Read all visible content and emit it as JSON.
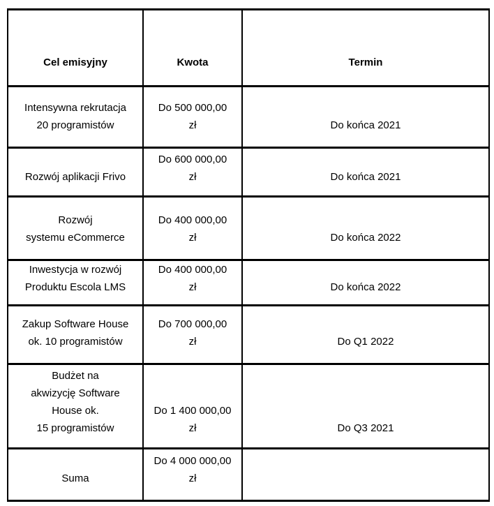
{
  "table": {
    "headers": [
      "Cel emisyjny",
      "Kwota",
      "Termin"
    ],
    "rows": [
      {
        "goal": "Intensywna rekrutacja\n20 programistów",
        "amount": "Do 500 000,00\nzł",
        "deadline": "Do końca 2021"
      },
      {
        "goal": "Rozwój aplikacji Frivo",
        "amount": "Do 600 000,00\nzł",
        "deadline": "Do końca 2021"
      },
      {
        "goal": "Rozwój\nsystemu eCommerce",
        "amount": "Do 400 000,00\nzł",
        "deadline": "Do końca 2022"
      },
      {
        "goal": "Inwestycja w rozwój\nProduktu Escola LMS",
        "amount": "Do 400 000,00\nzł",
        "deadline": "Do końca 2022"
      },
      {
        "goal": "Zakup Software House\nok. 10 programistów",
        "amount": "Do 700 000,00\nzł",
        "deadline": "Do Q1 2022"
      },
      {
        "goal": "Budżet na\nakwizycję Software\nHouse ok.\n15 programistów",
        "amount": "Do 1 400 000,00\nzł",
        "deadline": "Do Q3 2021"
      },
      {
        "goal": "Suma",
        "amount": "Do 4 000 000,00\nzł",
        "deadline": ""
      }
    ],
    "colors": {
      "border": "#000000",
      "background": "#ffffff",
      "text": "#000000"
    }
  }
}
